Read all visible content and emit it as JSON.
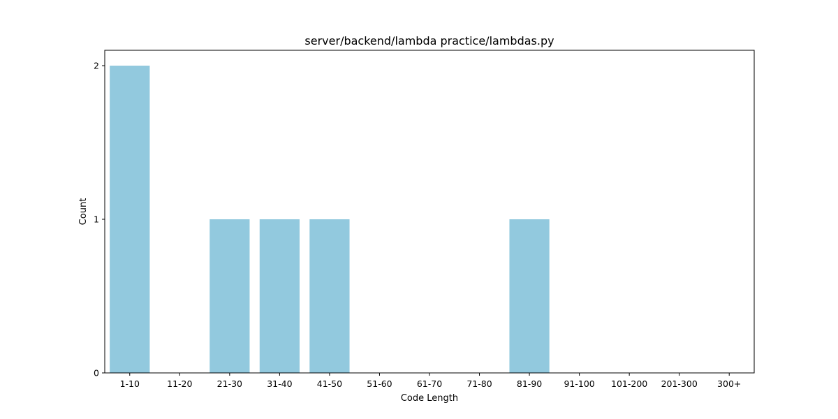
{
  "chart_data": {
    "type": "bar",
    "title": "server/backend/lambda practice/lambdas.py",
    "xlabel": "Code Length",
    "ylabel": "Count",
    "categories": [
      "1-10",
      "11-20",
      "21-30",
      "31-40",
      "41-50",
      "51-60",
      "61-70",
      "71-80",
      "81-90",
      "91-100",
      "101-200",
      "201-300",
      "300+"
    ],
    "values": [
      2,
      0,
      1,
      1,
      1,
      0,
      0,
      0,
      1,
      0,
      0,
      0,
      0
    ],
    "ylim": [
      0,
      2.1
    ],
    "yticks": [
      "0",
      "1",
      "2"
    ],
    "bar_color": "#92c9de",
    "grid": false,
    "legend": "none"
  }
}
